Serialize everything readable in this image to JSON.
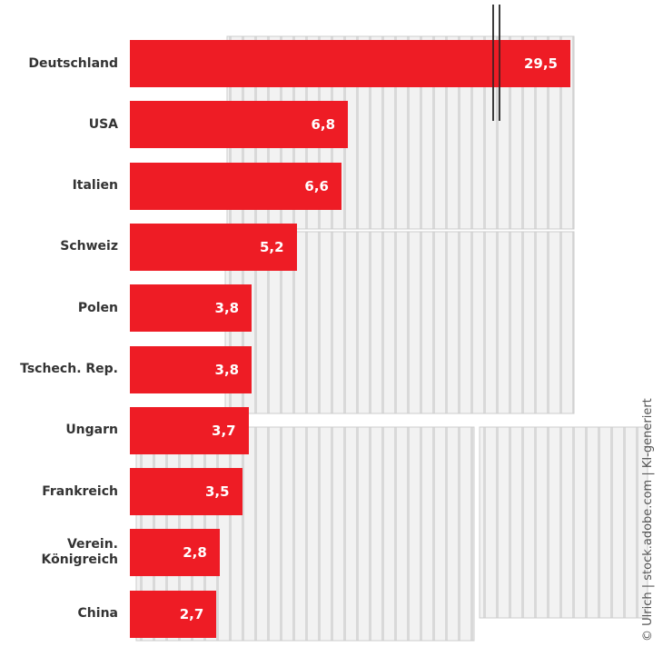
{
  "chart_data": {
    "type": "bar",
    "categories": [
      "Deutschland",
      "USA",
      "Italien",
      "Schweiz",
      "Polen",
      "Tschech. Rep.",
      "Ungarn",
      "Frankreich",
      "Verein. Königreich",
      "China"
    ],
    "values": [
      29.5,
      6.8,
      6.6,
      5.2,
      3.8,
      3.8,
      3.7,
      3.5,
      2.8,
      2.7
    ],
    "value_labels": [
      "29,5",
      "6,8",
      "6,6",
      "5,2",
      "3,8",
      "3,8",
      "3,7",
      "3,5",
      "2,8",
      "2,7"
    ],
    "color": "#ee1c25",
    "credit": "© Ulrich | stock.adobe.com | KI-generiert"
  }
}
